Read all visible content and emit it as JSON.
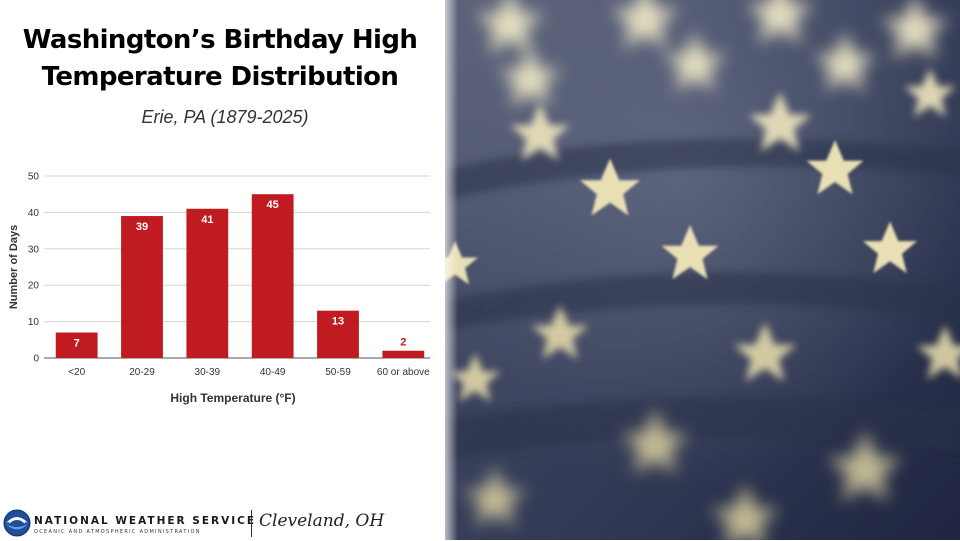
{
  "slide": {
    "title_line1": "Washington’s Birthday High",
    "title_line2": "Temperature Distribution",
    "subtitle": "Erie, PA (1879-2025)"
  },
  "footer": {
    "org_name": "NATIONAL WEATHER SERVICE",
    "org_sub": "OCEANIC AND ATMOSPHERIC ADMINISTRATION",
    "office": "Cleveland, OH",
    "logo_icon": "noaa-logo-icon"
  },
  "photo": {
    "icon": "american-flag-stars-photo"
  },
  "chart_data": {
    "type": "bar",
    "categories": [
      "<20",
      "20-29",
      "30-39",
      "40-49",
      "50-59",
      "60 or above"
    ],
    "values": [
      7,
      39,
      41,
      45,
      13,
      2
    ],
    "xlabel": "High Temperature (°F)",
    "ylabel": "Number of Days",
    "ylim": [
      0,
      50
    ],
    "yticks": [
      0,
      10,
      20,
      30,
      40,
      50
    ],
    "grid": true,
    "bar_color": "#c01b20",
    "data_labels": true
  }
}
